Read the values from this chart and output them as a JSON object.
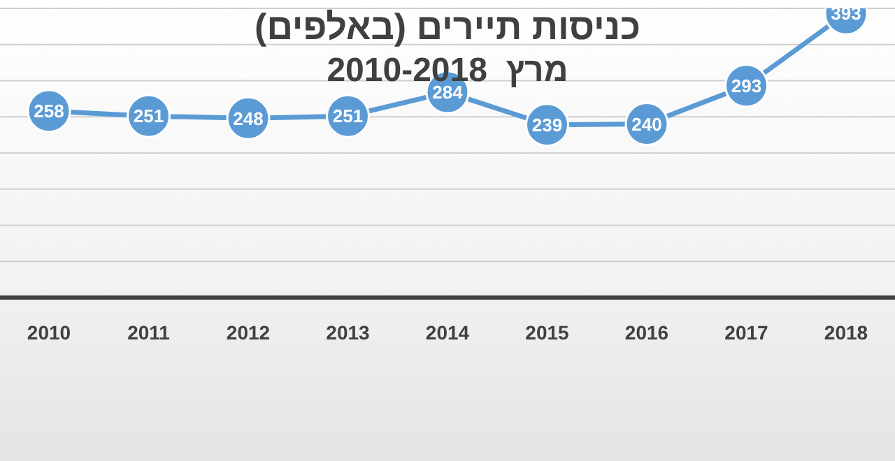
{
  "chart_data": {
    "type": "line",
    "title": "כניסות תיירים (באלפים)",
    "subtitle": "מרץ  2010-2018",
    "categories": [
      "2010",
      "2011",
      "2012",
      "2013",
      "2014",
      "2015",
      "2016",
      "2017",
      "2018"
    ],
    "series": [
      {
        "color": "#5b9bd5",
        "values": [
          258,
          251,
          248,
          251,
          284,
          239,
          240,
          293,
          393
        ]
      }
    ],
    "ylim": [
      0,
      400
    ],
    "tick_labels": "x",
    "grid": "y",
    "marker": "circle",
    "line_style": "solid",
    "data_labels": true
  }
}
